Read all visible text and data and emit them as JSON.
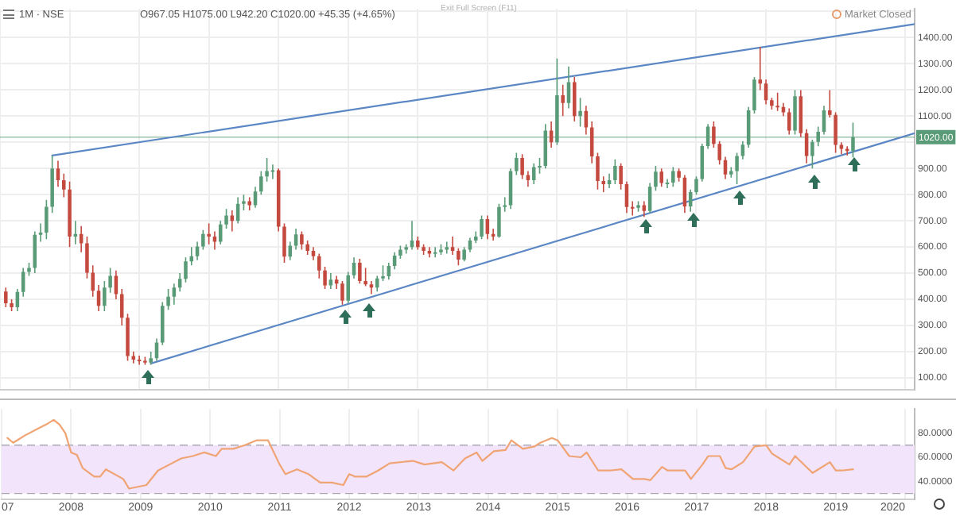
{
  "chart_data": [
    {
      "type": "candlestick",
      "annotations": [
        "1M · NSE",
        "O967.05 H1075.00 L942.20 C1020.00 +45.35 (+4.65%)",
        "Exit Full Screen (F11)",
        "Market Closed"
      ],
      "x": [
        "2007-02",
        "2007-03",
        "2007-04",
        "2007-05",
        "2007-06",
        "2007-07",
        "2007-08",
        "2007-09",
        "2007-10",
        "2007-11",
        "2007-12",
        "2008-01",
        "2008-02",
        "2008-03",
        "2008-04",
        "2008-05",
        "2008-06",
        "2008-07",
        "2008-08",
        "2008-09",
        "2008-10",
        "2008-11",
        "2008-12",
        "2009-01",
        "2009-02",
        "2009-03",
        "2009-04",
        "2009-05",
        "2009-06",
        "2009-07",
        "2009-08",
        "2009-09",
        "2009-10",
        "2009-11",
        "2009-12",
        "2010-01",
        "2010-02",
        "2010-03",
        "2010-04",
        "2010-05",
        "2010-06",
        "2010-07",
        "2010-08",
        "2010-09",
        "2010-10",
        "2010-11",
        "2010-12",
        "2011-01",
        "2011-02",
        "2011-03",
        "2011-04",
        "2011-05",
        "2011-06",
        "2011-07",
        "2011-08",
        "2011-09",
        "2011-10",
        "2011-11",
        "2011-12",
        "2012-01",
        "2012-02",
        "2012-03",
        "2012-04",
        "2012-05",
        "2012-06",
        "2012-07",
        "2012-08",
        "2012-09",
        "2012-10",
        "2012-11",
        "2012-12",
        "2013-01",
        "2013-02",
        "2013-03",
        "2013-04",
        "2013-05",
        "2013-06",
        "2013-07",
        "2013-08",
        "2013-09",
        "2013-10",
        "2013-11",
        "2013-12",
        "2014-01",
        "2014-02",
        "2014-03",
        "2014-04",
        "2014-05",
        "2014-06",
        "2014-07",
        "2014-08",
        "2014-09",
        "2014-10",
        "2014-11",
        "2014-12",
        "2015-01",
        "2015-02",
        "2015-03",
        "2015-04",
        "2015-05",
        "2015-06",
        "2015-07",
        "2015-08",
        "2015-09",
        "2015-10",
        "2015-11",
        "2015-12",
        "2016-01",
        "2016-02",
        "2016-03",
        "2016-04",
        "2016-05",
        "2016-06",
        "2016-07",
        "2016-08",
        "2016-09",
        "2016-10",
        "2016-11",
        "2016-12",
        "2017-01",
        "2017-02",
        "2017-03",
        "2017-04",
        "2017-05",
        "2017-06",
        "2017-07",
        "2017-08",
        "2017-09",
        "2017-10",
        "2017-11",
        "2017-12",
        "2018-01",
        "2018-02",
        "2018-03",
        "2018-04",
        "2018-05",
        "2018-06",
        "2018-07",
        "2018-08",
        "2018-09",
        "2018-10",
        "2018-11",
        "2018-12",
        "2019-01",
        "2019-02",
        "2019-03",
        "2019-04"
      ],
      "ohlc": [
        [
          430,
          445,
          370,
          385
        ],
        [
          385,
          400,
          355,
          370
        ],
        [
          370,
          440,
          355,
          428
        ],
        [
          428,
          520,
          410,
          505
        ],
        [
          505,
          540,
          490,
          520
        ],
        [
          520,
          660,
          500,
          647
        ],
        [
          647,
          690,
          620,
          655
        ],
        [
          655,
          780,
          630,
          754
        ],
        [
          754,
          950,
          730,
          900
        ],
        [
          900,
          930,
          830,
          855
        ],
        [
          855,
          880,
          790,
          820
        ],
        [
          820,
          850,
          600,
          640
        ],
        [
          640,
          700,
          610,
          650
        ],
        [
          650,
          680,
          580,
          614
        ],
        [
          614,
          640,
          480,
          502
        ],
        [
          502,
          530,
          410,
          433
        ],
        [
          433,
          455,
          355,
          375
        ],
        [
          375,
          470,
          355,
          445
        ],
        [
          445,
          520,
          425,
          490
        ],
        [
          490,
          510,
          400,
          420
        ],
        [
          420,
          440,
          300,
          330
        ],
        [
          330,
          345,
          165,
          183
        ],
        [
          183,
          200,
          155,
          170
        ],
        [
          170,
          185,
          150,
          165
        ],
        [
          165,
          180,
          150,
          158
        ],
        [
          158,
          200,
          150,
          175
        ],
        [
          175,
          250,
          165,
          235
        ],
        [
          235,
          390,
          225,
          375
        ],
        [
          375,
          440,
          360,
          410
        ],
        [
          410,
          460,
          380,
          445
        ],
        [
          445,
          500,
          430,
          478
        ],
        [
          478,
          560,
          465,
          545
        ],
        [
          545,
          600,
          530,
          565
        ],
        [
          565,
          620,
          550,
          602
        ],
        [
          602,
          665,
          590,
          650
        ],
        [
          650,
          690,
          610,
          640
        ],
        [
          640,
          660,
          590,
          620
        ],
        [
          620,
          700,
          610,
          686
        ],
        [
          686,
          745,
          670,
          720
        ],
        [
          720,
          740,
          660,
          700
        ],
        [
          700,
          790,
          690,
          765
        ],
        [
          765,
          800,
          740,
          775
        ],
        [
          775,
          790,
          740,
          760
        ],
        [
          760,
          830,
          750,
          812
        ],
        [
          812,
          890,
          800,
          870
        ],
        [
          870,
          940,
          850,
          890
        ],
        [
          890,
          915,
          860,
          893
        ],
        [
          893,
          900,
          660,
          678
        ],
        [
          678,
          690,
          540,
          563
        ],
        [
          563,
          620,
          550,
          605
        ],
        [
          605,
          670,
          590,
          648
        ],
        [
          648,
          660,
          590,
          610
        ],
        [
          610,
          625,
          570,
          585
        ],
        [
          585,
          600,
          550,
          565
        ],
        [
          565,
          575,
          480,
          510
        ],
        [
          510,
          525,
          440,
          453
        ],
        [
          453,
          500,
          440,
          475
        ],
        [
          475,
          490,
          440,
          460
        ],
        [
          460,
          470,
          380,
          395
        ],
        [
          395,
          505,
          385,
          492
        ],
        [
          492,
          560,
          480,
          540
        ],
        [
          540,
          555,
          460,
          470
        ],
        [
          470,
          520,
          450,
          457
        ],
        [
          457,
          470,
          420,
          445
        ],
        [
          445,
          490,
          430,
          480
        ],
        [
          480,
          530,
          470,
          488
        ],
        [
          488,
          540,
          475,
          528
        ],
        [
          528,
          580,
          515,
          567
        ],
        [
          567,
          605,
          555,
          590
        ],
        [
          590,
          610,
          575,
          600
        ],
        [
          600,
          700,
          590,
          625
        ],
        [
          625,
          640,
          590,
          600
        ],
        [
          600,
          610,
          570,
          585
        ],
        [
          585,
          600,
          560,
          575
        ],
        [
          575,
          600,
          560,
          580
        ],
        [
          580,
          610,
          570,
          590
        ],
        [
          590,
          620,
          575,
          600
        ],
        [
          600,
          640,
          570,
          585
        ],
        [
          585,
          595,
          530,
          552
        ],
        [
          552,
          600,
          545,
          590
        ],
        [
          590,
          635,
          580,
          625
        ],
        [
          625,
          660,
          615,
          640
        ],
        [
          640,
          720,
          630,
          707
        ],
        [
          707,
          720,
          630,
          650
        ],
        [
          650,
          670,
          625,
          640
        ],
        [
          640,
          765,
          635,
          753
        ],
        [
          753,
          790,
          735,
          760
        ],
        [
          760,
          900,
          745,
          890
        ],
        [
          890,
          960,
          875,
          940
        ],
        [
          940,
          955,
          860,
          875
        ],
        [
          875,
          890,
          830,
          855
        ],
        [
          855,
          920,
          840,
          905
        ],
        [
          905,
          940,
          880,
          910
        ],
        [
          910,
          1070,
          900,
          1045
        ],
        [
          1045,
          1080,
          980,
          1000
        ],
        [
          1000,
          1320,
          990,
          1180
        ],
        [
          1180,
          1220,
          1100,
          1150
        ],
        [
          1150,
          1290,
          1130,
          1230
        ],
        [
          1230,
          1250,
          1080,
          1100
        ],
        [
          1100,
          1170,
          1060,
          1120
        ],
        [
          1120,
          1140,
          1030,
          1057
        ],
        [
          1057,
          1080,
          920,
          946
        ],
        [
          946,
          960,
          820,
          852
        ],
        [
          852,
          870,
          810,
          840
        ],
        [
          840,
          880,
          825,
          855
        ],
        [
          855,
          935,
          840,
          910
        ],
        [
          910,
          920,
          820,
          840
        ],
        [
          840,
          850,
          730,
          753
        ],
        [
          753,
          775,
          720,
          750
        ],
        [
          750,
          775,
          735,
          760
        ],
        [
          760,
          775,
          715,
          738
        ],
        [
          738,
          845,
          730,
          830
        ],
        [
          830,
          910,
          815,
          888
        ],
        [
          888,
          900,
          830,
          845
        ],
        [
          845,
          860,
          825,
          846
        ],
        [
          846,
          905,
          830,
          890
        ],
        [
          890,
          900,
          850,
          865
        ],
        [
          865,
          875,
          730,
          755
        ],
        [
          755,
          820,
          735,
          810
        ],
        [
          810,
          870,
          800,
          860
        ],
        [
          860,
          995,
          850,
          986
        ],
        [
          986,
          1070,
          975,
          1060
        ],
        [
          1060,
          1080,
          980,
          994
        ],
        [
          994,
          1005,
          915,
          932
        ],
        [
          932,
          945,
          860,
          877
        ],
        [
          877,
          905,
          865,
          890
        ],
        [
          890,
          960,
          840,
          948
        ],
        [
          948,
          1005,
          935,
          991
        ],
        [
          991,
          1135,
          980,
          1122
        ],
        [
          1122,
          1250,
          1110,
          1240
        ],
        [
          1240,
          1365,
          1200,
          1225
        ],
        [
          1225,
          1240,
          1145,
          1161
        ],
        [
          1161,
          1170,
          1125,
          1140
        ],
        [
          1140,
          1190,
          1120,
          1135
        ],
        [
          1135,
          1150,
          1100,
          1115
        ],
        [
          1115,
          1130,
          1030,
          1045
        ],
        [
          1045,
          1200,
          1030,
          1176
        ],
        [
          1176,
          1200,
          1020,
          1035
        ],
        [
          1035,
          1050,
          920,
          948
        ],
        [
          948,
          1010,
          900,
          1002
        ],
        [
          1002,
          1060,
          985,
          1040
        ],
        [
          1040,
          1140,
          1030,
          1122
        ],
        [
          1122,
          1200,
          1095,
          1105
        ],
        [
          1105,
          1115,
          960,
          990
        ],
        [
          990,
          1000,
          955,
          975
        ],
        [
          975,
          985,
          950,
          967.05
        ],
        [
          967.05,
          1075,
          942.2,
          1020
        ]
      ],
      "colors": [
        "#c4493f",
        "#c4493f",
        "#5a9b77",
        "#5a9b77",
        "#5a9b77",
        "#5a9b77",
        "#5a9b77",
        "#5a9b77",
        "#5a9b77",
        "#c4493f",
        "#c4493f",
        "#c4493f",
        "#5a9b77",
        "#c4493f",
        "#c4493f",
        "#c4493f",
        "#c4493f",
        "#5a9b77",
        "#5a9b77",
        "#c4493f",
        "#c4493f",
        "#c4493f",
        "#c4493f",
        "#c4493f",
        "#c4493f",
        "#5a9b77",
        "#5a9b77",
        "#5a9b77",
        "#5a9b77",
        "#5a9b77",
        "#5a9b77",
        "#5a9b77",
        "#5a9b77",
        "#5a9b77",
        "#5a9b77",
        "#c4493f",
        "#c4493f",
        "#5a9b77",
        "#5a9b77",
        "#c4493f",
        "#5a9b77",
        "#5a9b77",
        "#c4493f",
        "#5a9b77",
        "#5a9b77",
        "#5a9b77",
        "#5a9b77",
        "#c4493f",
        "#c4493f",
        "#5a9b77",
        "#5a9b77",
        "#c4493f",
        "#c4493f",
        "#c4493f",
        "#c4493f",
        "#c4493f",
        "#5a9b77",
        "#c4493f",
        "#c4493f",
        "#5a9b77",
        "#5a9b77",
        "#c4493f",
        "#c4493f",
        "#c4493f",
        "#5a9b77",
        "#5a9b77",
        "#5a9b77",
        "#5a9b77",
        "#5a9b77",
        "#5a9b77",
        "#5a9b77",
        "#c4493f",
        "#c4493f",
        "#c4493f",
        "#5a9b77",
        "#5a9b77",
        "#5a9b77",
        "#c4493f",
        "#c4493f",
        "#5a9b77",
        "#5a9b77",
        "#5a9b77",
        "#5a9b77",
        "#c4493f",
        "#c4493f",
        "#5a9b77",
        "#5a9b77",
        "#5a9b77",
        "#5a9b77",
        "#c4493f",
        "#c4493f",
        "#5a9b77",
        "#5a9b77",
        "#5a9b77",
        "#c4493f",
        "#5a9b77",
        "#c4493f",
        "#5a9b77",
        "#c4493f",
        "#5a9b77",
        "#c4493f",
        "#c4493f",
        "#c4493f",
        "#c4493f",
        "#5a9b77",
        "#5a9b77",
        "#c4493f",
        "#c4493f",
        "#c4493f",
        "#5a9b77",
        "#c4493f",
        "#5a9b77",
        "#5a9b77",
        "#c4493f",
        "#5a9b77",
        "#5a9b77",
        "#c4493f",
        "#c4493f",
        "#5a9b77",
        "#5a9b77",
        "#5a9b77",
        "#5a9b77",
        "#c4493f",
        "#c4493f",
        "#c4493f",
        "#5a9b77",
        "#5a9b77",
        "#5a9b77",
        "#5a9b77",
        "#5a9b77",
        "#c4493f",
        "#c4493f",
        "#c4493f",
        "#c4493f",
        "#c4493f",
        "#c4493f",
        "#5a9b77",
        "#c4493f",
        "#c4493f",
        "#5a9b77",
        "#5a9b77",
        "#5a9b77",
        "#c4493f",
        "#c4493f",
        "#c4493f",
        "#c4493f",
        "#5a9b77"
      ],
      "series": [
        {
          "type": "line",
          "color": "#5b87c5",
          "x": [
            "2007-10",
            "2020-02-20"
          ],
          "values": [
            950,
            1452
          ]
        },
        {
          "type": "line",
          "color": "#5b87c5",
          "x": [
            "2009-03",
            "2020-02-20"
          ],
          "values": [
            155,
            1035
          ]
        }
      ],
      "xlim": [
        "2007",
        "2020-02-20"
      ],
      "xticks": [
        "2007",
        "2008",
        "2009",
        "2010",
        "2011",
        "2012",
        "2013",
        "2014",
        "2015",
        "2016",
        "2017",
        "2018",
        "2019",
        "2020"
      ],
      "ylim": [
        55,
        1510
      ],
      "yticks": [
        {
          "value": 100,
          "label": "100.00"
        },
        {
          "value": 200,
          "label": "200.00"
        },
        {
          "value": 300,
          "label": "300.00"
        },
        {
          "value": 400,
          "label": "400.00"
        },
        {
          "value": 500,
          "label": "500.00"
        },
        {
          "value": 600,
          "label": "600.00"
        },
        {
          "value": 700,
          "label": "700.00"
        },
        {
          "value": 800,
          "label": "800.00"
        },
        {
          "value": 900,
          "label": "900.00"
        },
        {
          "value": 1000,
          "label": null
        },
        {
          "value": 1100,
          "label": "1100.00"
        },
        {
          "value": 1200,
          "label": "1200.00"
        },
        {
          "value": 1300,
          "label": "1300.00"
        },
        {
          "value": 1400,
          "label": "1400.00"
        },
        {
          "value": 1500,
          "label": null
        }
      ],
      "ref_lines": [
        {
          "axis": "y",
          "value": 1020,
          "label": "1020.00",
          "color": "#5a9b77"
        }
      ],
      "grid": true,
      "tick_labels": "y"
    },
    {
      "type": "line",
      "x": [
        "2007-02",
        "2007-03",
        "2007-04",
        "2007-05",
        "2007-07",
        "2007-09",
        "2007-10",
        "2007-11",
        "2007-12",
        "2008-01",
        "2008-02",
        "2008-03",
        "2008-05",
        "2008-06",
        "2008-07",
        "2008-10",
        "2008-11",
        "2008-12",
        "2009-02",
        "2009-04",
        "2009-06",
        "2009-08",
        "2009-10",
        "2009-12",
        "2010-02",
        "2010-03",
        "2010-05",
        "2010-07",
        "2010-09",
        "2010-11",
        "2011-01",
        "2011-02",
        "2011-04",
        "2011-06",
        "2011-08",
        "2011-10",
        "2011-12",
        "2012-01",
        "2012-02",
        "2012-04",
        "2012-06",
        "2012-08",
        "2012-12",
        "2013-02",
        "2013-05",
        "2013-07",
        "2013-09",
        "2013-11",
        "2013-12",
        "2014-02",
        "2014-04",
        "2014-05",
        "2014-07",
        "2014-09",
        "2014-10",
        "2014-12",
        "2015-01",
        "2015-03",
        "2015-05",
        "2015-06",
        "2015-08",
        "2015-10",
        "2015-12",
        "2016-02",
        "2016-04",
        "2016-05",
        "2016-07",
        "2016-08",
        "2016-10",
        "2016-11",
        "2016-12",
        "2017-02",
        "2017-03",
        "2017-05",
        "2017-06",
        "2017-07",
        "2017-09",
        "2017-11",
        "2018-01",
        "2018-02",
        "2018-03",
        "2018-05",
        "2018-06",
        "2018-09",
        "2018-10",
        "2018-12",
        "2019-01",
        "2019-02",
        "2019-04"
      ],
      "series": [
        {
          "color": "#f0a474",
          "values": [
            76,
            72,
            75,
            78,
            83,
            88,
            91,
            87,
            80,
            64,
            62,
            51,
            44,
            44,
            50,
            42,
            34,
            35,
            37,
            49,
            54,
            59,
            61,
            64,
            61,
            67,
            67,
            70,
            74,
            74,
            54,
            46,
            50,
            46,
            39,
            39,
            37,
            46,
            44,
            44,
            49,
            55,
            57,
            54,
            56,
            49,
            59,
            64,
            57,
            65,
            66,
            74,
            67,
            69,
            72,
            76,
            74,
            61,
            60,
            64,
            49,
            49,
            50,
            42,
            42,
            41,
            52,
            49,
            49,
            49,
            42,
            54,
            61,
            61,
            51,
            50,
            56,
            69,
            70,
            63,
            60,
            54,
            61,
            47,
            50,
            56,
            49,
            49,
            50
          ]
        }
      ],
      "bands": [
        {
          "axis": "y",
          "from": 30,
          "to": 70,
          "color": "#f1e4fb"
        }
      ],
      "ref_lines": [
        {
          "axis": "y",
          "value": 30,
          "color": "#a9a9b5",
          "line_style": "dashed"
        },
        {
          "axis": "y",
          "value": 70,
          "color": "#a9a9b5",
          "line_style": "dashed"
        }
      ],
      "xlim": [
        "2007",
        "2020-02-20"
      ],
      "xticks": [
        {
          "value": "2007",
          "label": "07"
        },
        "2008",
        "2009",
        "2010",
        "2011",
        "2012",
        "2013",
        "2014",
        "2015",
        "2016",
        "2017",
        "2018",
        "2019",
        "2020"
      ],
      "ylim": [
        25,
        100
      ],
      "yticks": [
        {
          "value": 40,
          "label": "40.0000"
        },
        {
          "value": 60,
          "label": "60.0000"
        },
        {
          "value": 80,
          "label": "80.0000"
        }
      ],
      "grid": "x"
    }
  ]
}
